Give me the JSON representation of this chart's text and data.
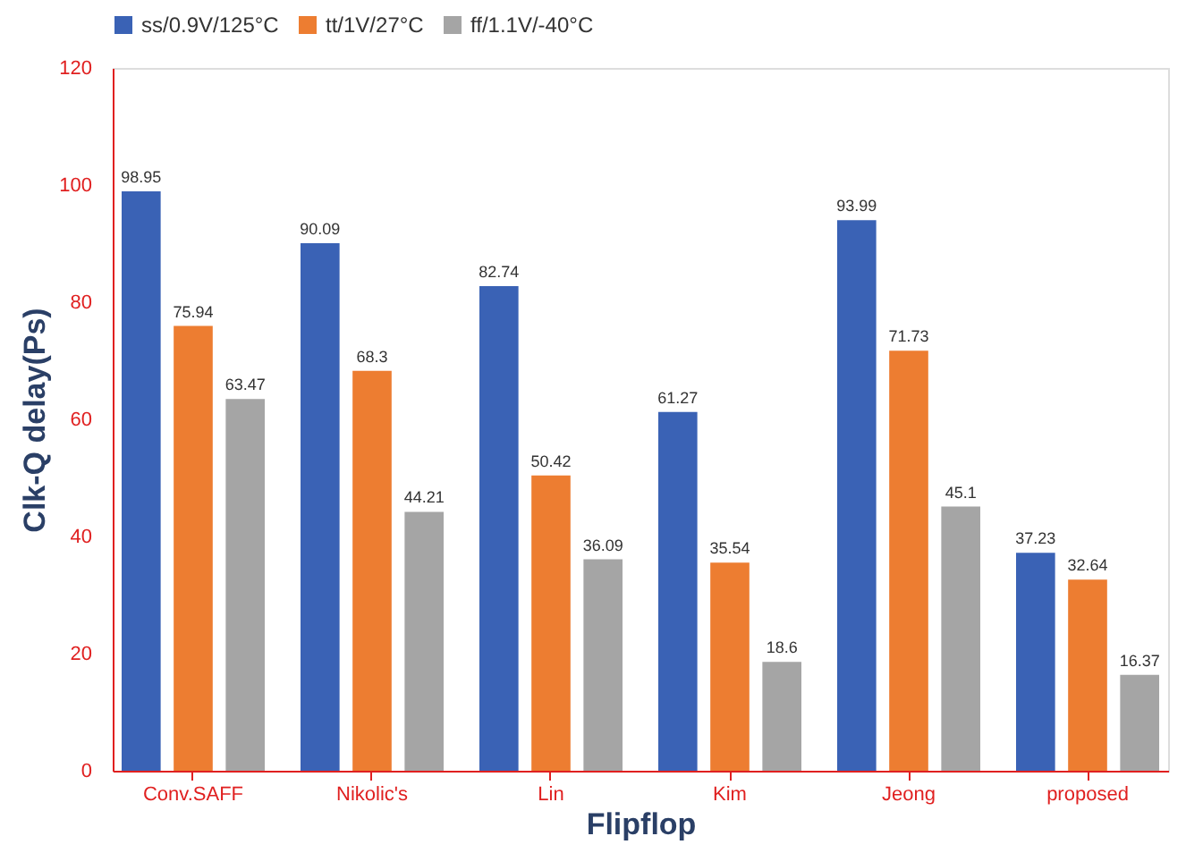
{
  "chart_data": {
    "type": "bar",
    "xlabel": "Flipflop",
    "ylabel": "Clk-Q delay(Ps)",
    "categories": [
      "Conv.SAFF",
      "Nikolic's",
      "Lin",
      "Kim",
      "Jeong",
      "proposed"
    ],
    "series": [
      {
        "name": "ss/0.9V/125°C",
        "color": "#3a62b5",
        "values": [
          98.95,
          90.09,
          82.74,
          61.27,
          93.99,
          37.23
        ]
      },
      {
        "name": "tt/1V/27°C",
        "color": "#ed7d31",
        "values": [
          75.94,
          68.3,
          50.42,
          35.54,
          71.73,
          32.64
        ]
      },
      {
        "name": "ff/1.1V/-40°C",
        "color": "#a5a5a5",
        "values": [
          63.47,
          44.21,
          36.09,
          18.6,
          45.1,
          16.37
        ]
      }
    ],
    "ylim": [
      0,
      120
    ],
    "yticks": [
      0,
      20,
      40,
      60,
      80,
      100,
      120
    ],
    "grid": false,
    "legend": "top",
    "data_labels": true
  }
}
